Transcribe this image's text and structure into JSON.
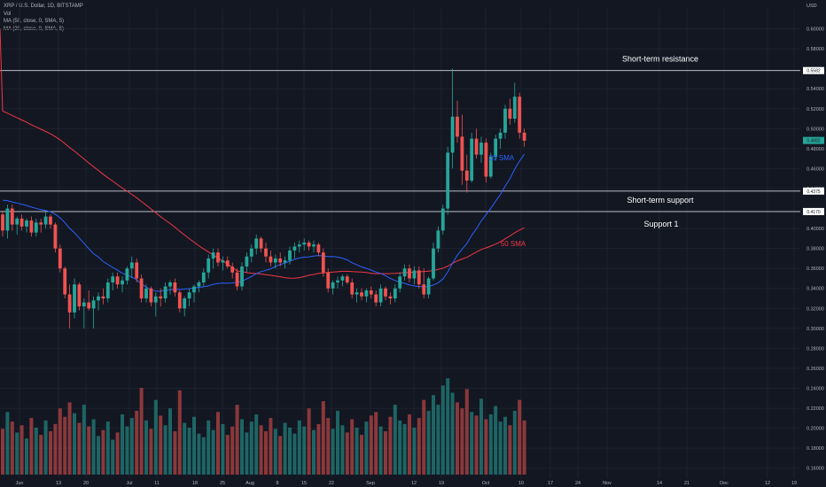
{
  "legend": {
    "symbol_line": "XRP / U.S. Dollar, 1D, BITSTAMP",
    "vol_line": "Vol",
    "ma50_line": "MA (50, close, 0, SMA, 5)",
    "ma20_line": "MA (20, close, 0, SMA, 5)"
  },
  "chart_data": {
    "type": "candlestick",
    "symbol": "XRP / U.S. Dollar",
    "interval": "1D",
    "exchange": "BITSTAMP",
    "currency_label": "USD",
    "ylim": [
      0.15,
      0.62
    ],
    "y_ticks": [
      "0.60000",
      "0.58000",
      "0.54000",
      "0.52000",
      "0.50000",
      "0.48000",
      "0.46000",
      "0.44000",
      "0.40000",
      "0.38000",
      "0.36000",
      "0.34000",
      "0.32000",
      "0.30000",
      "0.28000",
      "0.26000",
      "0.24000",
      "0.22000",
      "0.20000",
      "0.18000",
      "0.16000"
    ],
    "x_ticks": [
      "Jun",
      "13",
      "20",
      "Jul",
      "11",
      "18",
      "25",
      "Aug",
      "8",
      "15",
      "22",
      "Sep",
      "12",
      "19",
      "Oct",
      "10",
      "17",
      "24",
      "Nov",
      "14",
      "21",
      "Dec",
      "12",
      "19"
    ],
    "price_tags": {
      "resistance": {
        "label": "0.5582",
        "value": 0.5582
      },
      "current": {
        "label": "0.4882",
        "value": 0.4882
      },
      "support": {
        "label": "0.4375",
        "value": 0.4375
      },
      "support1": {
        "label": "0.4170",
        "value": 0.417
      }
    },
    "annotations": {
      "resistance": "Short-term resistance",
      "support": "Short-term support",
      "support1": "Support 1",
      "sma20": "20 SMA",
      "sma50": "50 SMA"
    },
    "colors": {
      "up": "#26a69a",
      "down": "#ef5350",
      "sma20": "#2962ff",
      "sma50": "#f23645",
      "level": "#d1d4dc",
      "current": "#26a69a"
    },
    "candles": [
      [
        0.414,
        0.418,
        0.392,
        0.398
      ],
      [
        0.398,
        0.424,
        0.39,
        0.42
      ],
      [
        0.42,
        0.424,
        0.398,
        0.404
      ],
      [
        0.404,
        0.412,
        0.394,
        0.41
      ],
      [
        0.41,
        0.414,
        0.398,
        0.402
      ],
      [
        0.402,
        0.41,
        0.396,
        0.408
      ],
      [
        0.408,
        0.412,
        0.392,
        0.396
      ],
      [
        0.396,
        0.41,
        0.392,
        0.406
      ],
      [
        0.406,
        0.41,
        0.396,
        0.404
      ],
      [
        0.404,
        0.416,
        0.4,
        0.412
      ],
      [
        0.412,
        0.414,
        0.4,
        0.404
      ],
      [
        0.404,
        0.406,
        0.376,
        0.38
      ],
      [
        0.38,
        0.384,
        0.356,
        0.36
      ],
      [
        0.36,
        0.362,
        0.33,
        0.334
      ],
      [
        0.334,
        0.344,
        0.3,
        0.316
      ],
      [
        0.316,
        0.35,
        0.31,
        0.344
      ],
      [
        0.344,
        0.346,
        0.318,
        0.322
      ],
      [
        0.322,
        0.33,
        0.3,
        0.326
      ],
      [
        0.326,
        0.338,
        0.318,
        0.32
      ],
      [
        0.32,
        0.332,
        0.3,
        0.328
      ],
      [
        0.328,
        0.336,
        0.318,
        0.332
      ],
      [
        0.332,
        0.34,
        0.324,
        0.33
      ],
      [
        0.33,
        0.35,
        0.326,
        0.346
      ],
      [
        0.346,
        0.356,
        0.338,
        0.352
      ],
      [
        0.352,
        0.356,
        0.34,
        0.344
      ],
      [
        0.344,
        0.352,
        0.336,
        0.348
      ],
      [
        0.348,
        0.362,
        0.344,
        0.36
      ],
      [
        0.36,
        0.372,
        0.35,
        0.366
      ],
      [
        0.366,
        0.37,
        0.346,
        0.35
      ],
      [
        0.35,
        0.354,
        0.326,
        0.33
      ],
      [
        0.33,
        0.344,
        0.326,
        0.34
      ],
      [
        0.34,
        0.342,
        0.322,
        0.326
      ],
      [
        0.326,
        0.336,
        0.312,
        0.332
      ],
      [
        0.332,
        0.34,
        0.322,
        0.33
      ],
      [
        0.33,
        0.346,
        0.326,
        0.342
      ],
      [
        0.342,
        0.348,
        0.334,
        0.346
      ],
      [
        0.346,
        0.35,
        0.332,
        0.336
      ],
      [
        0.336,
        0.338,
        0.316,
        0.32
      ],
      [
        0.32,
        0.332,
        0.312,
        0.33
      ],
      [
        0.33,
        0.34,
        0.322,
        0.336
      ],
      [
        0.336,
        0.344,
        0.326,
        0.342
      ],
      [
        0.342,
        0.348,
        0.336,
        0.346
      ],
      [
        0.346,
        0.36,
        0.342,
        0.356
      ],
      [
        0.356,
        0.374,
        0.35,
        0.37
      ],
      [
        0.37,
        0.38,
        0.36,
        0.376
      ],
      [
        0.376,
        0.38,
        0.362,
        0.366
      ],
      [
        0.366,
        0.372,
        0.358,
        0.368
      ],
      [
        0.368,
        0.372,
        0.36,
        0.362
      ],
      [
        0.362,
        0.366,
        0.35,
        0.356
      ],
      [
        0.356,
        0.36,
        0.338,
        0.342
      ],
      [
        0.342,
        0.366,
        0.338,
        0.362
      ],
      [
        0.362,
        0.376,
        0.356,
        0.372
      ],
      [
        0.372,
        0.384,
        0.366,
        0.38
      ],
      [
        0.38,
        0.394,
        0.374,
        0.39
      ],
      [
        0.39,
        0.392,
        0.376,
        0.38
      ],
      [
        0.38,
        0.386,
        0.366,
        0.372
      ],
      [
        0.372,
        0.378,
        0.362,
        0.366
      ],
      [
        0.366,
        0.374,
        0.36,
        0.37
      ],
      [
        0.37,
        0.376,
        0.362,
        0.366
      ],
      [
        0.366,
        0.372,
        0.36,
        0.368
      ],
      [
        0.368,
        0.382,
        0.364,
        0.378
      ],
      [
        0.378,
        0.386,
        0.37,
        0.382
      ],
      [
        0.382,
        0.388,
        0.376,
        0.384
      ],
      [
        0.384,
        0.39,
        0.378,
        0.386
      ],
      [
        0.386,
        0.388,
        0.378,
        0.382
      ],
      [
        0.382,
        0.388,
        0.376,
        0.384
      ],
      [
        0.384,
        0.386,
        0.372,
        0.376
      ],
      [
        0.376,
        0.38,
        0.352,
        0.356
      ],
      [
        0.356,
        0.36,
        0.336,
        0.34
      ],
      [
        0.34,
        0.348,
        0.334,
        0.346
      ],
      [
        0.346,
        0.352,
        0.34,
        0.348
      ],
      [
        0.348,
        0.354,
        0.342,
        0.352
      ],
      [
        0.352,
        0.354,
        0.344,
        0.346
      ],
      [
        0.346,
        0.35,
        0.33,
        0.334
      ],
      [
        0.334,
        0.34,
        0.326,
        0.336
      ],
      [
        0.336,
        0.34,
        0.328,
        0.332
      ],
      [
        0.332,
        0.34,
        0.326,
        0.338
      ],
      [
        0.338,
        0.342,
        0.33,
        0.334
      ],
      [
        0.334,
        0.338,
        0.322,
        0.326
      ],
      [
        0.326,
        0.344,
        0.322,
        0.34
      ],
      [
        0.34,
        0.342,
        0.328,
        0.332
      ],
      [
        0.332,
        0.336,
        0.324,
        0.33
      ],
      [
        0.33,
        0.344,
        0.326,
        0.34
      ],
      [
        0.34,
        0.356,
        0.336,
        0.352
      ],
      [
        0.352,
        0.364,
        0.348,
        0.36
      ],
      [
        0.36,
        0.364,
        0.346,
        0.35
      ],
      [
        0.35,
        0.362,
        0.344,
        0.358
      ],
      [
        0.358,
        0.362,
        0.34,
        0.344
      ],
      [
        0.344,
        0.36,
        0.33,
        0.334
      ],
      [
        0.334,
        0.352,
        0.33,
        0.35
      ],
      [
        0.35,
        0.386,
        0.348,
        0.38
      ],
      [
        0.38,
        0.402,
        0.376,
        0.398
      ],
      [
        0.398,
        0.424,
        0.394,
        0.42
      ],
      [
        0.42,
        0.482,
        0.414,
        0.476
      ],
      [
        0.476,
        0.56,
        0.46,
        0.512
      ],
      [
        0.512,
        0.528,
        0.486,
        0.492
      ],
      [
        0.492,
        0.514,
        0.444,
        0.458
      ],
      [
        0.458,
        0.474,
        0.436,
        0.448
      ],
      [
        0.448,
        0.496,
        0.446,
        0.49
      ],
      [
        0.49,
        0.5,
        0.47,
        0.474
      ],
      [
        0.474,
        0.492,
        0.466,
        0.486
      ],
      [
        0.486,
        0.49,
        0.446,
        0.452
      ],
      [
        0.452,
        0.476,
        0.45,
        0.472
      ],
      [
        0.472,
        0.494,
        0.468,
        0.49
      ],
      [
        0.49,
        0.5,
        0.48,
        0.496
      ],
      [
        0.496,
        0.524,
        0.49,
        0.52
      ],
      [
        0.52,
        0.53,
        0.504,
        0.51
      ],
      [
        0.51,
        0.546,
        0.506,
        0.532
      ],
      [
        0.532,
        0.536,
        0.49,
        0.496
      ],
      [
        0.496,
        0.5,
        0.482,
        0.488
      ]
    ],
    "volume": [
      0.38,
      0.52,
      0.44,
      0.35,
      0.41,
      0.3,
      0.47,
      0.39,
      0.33,
      0.45,
      0.36,
      0.42,
      0.55,
      0.48,
      0.6,
      0.51,
      0.43,
      0.58,
      0.4,
      0.46,
      0.32,
      0.37,
      0.44,
      0.29,
      0.35,
      0.5,
      0.4,
      0.47,
      0.53,
      0.72,
      0.45,
      0.38,
      0.62,
      0.49,
      0.41,
      0.55,
      0.36,
      0.7,
      0.43,
      0.39,
      0.48,
      0.34,
      0.31,
      0.45,
      0.37,
      0.52,
      0.42,
      0.33,
      0.4,
      0.58,
      0.46,
      0.35,
      0.44,
      0.5,
      0.41,
      0.36,
      0.47,
      0.38,
      0.32,
      0.43,
      0.39,
      0.34,
      0.45,
      0.4,
      0.55,
      0.37,
      0.42,
      0.61,
      0.47,
      0.38,
      0.53,
      0.41,
      0.35,
      0.46,
      0.39,
      0.33,
      0.44,
      0.49,
      0.52,
      0.4,
      0.36,
      0.48,
      0.58,
      0.45,
      0.42,
      0.5,
      0.39,
      0.47,
      0.62,
      0.53,
      0.66,
      0.58,
      0.74,
      0.8,
      0.68,
      0.6,
      0.55,
      0.71,
      0.52,
      0.49,
      0.63,
      0.46,
      0.5,
      0.57,
      0.44,
      0.48,
      0.41,
      0.53,
      0.62,
      0.45
    ]
  }
}
